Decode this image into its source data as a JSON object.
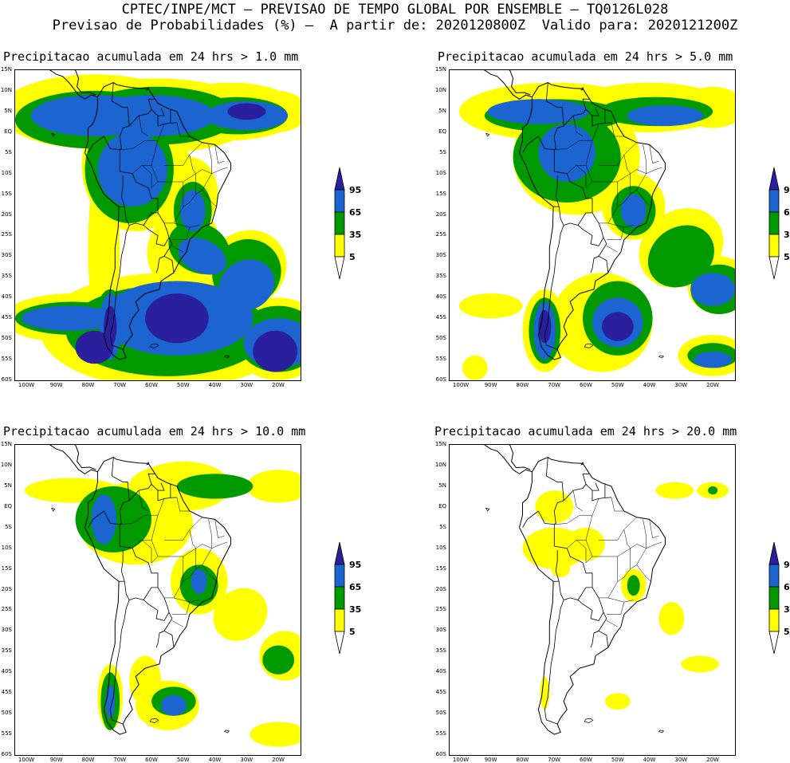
{
  "header": {
    "line1": "CPTEC/INPE/MCT — PREVISAO DE TEMPO GLOBAL POR ENSEMBLE — TQ0126L028",
    "line2": "Previsao de Probabilidades (%) —  A partir de: 2020120800Z  Valido para: 2020121200Z"
  },
  "axes": {
    "lat_labels": [
      "15N",
      "10N",
      "5N",
      "EQ",
      "5S",
      "10S",
      "15S",
      "20S",
      "25S",
      "30S",
      "35S",
      "40S",
      "45S",
      "50S",
      "55S",
      "60S"
    ],
    "lon_labels": [
      "100W",
      "90W",
      "80W",
      "70W",
      "60W",
      "50W",
      "40W",
      "30W",
      "20W"
    ]
  },
  "colors": {
    "yellow": "#ffff00",
    "green": "#009900",
    "blue": "#1c64d0",
    "navy": "#2a1f9c",
    "coast": "#000000"
  },
  "legend": {
    "labels": [
      "95",
      "65",
      "35",
      "5"
    ]
  },
  "panels": [
    {
      "title": "Precipitacao acumulada em 24 hrs > 1.0 mm"
    },
    {
      "title": "Precipitacao acumulada em 24 hrs > 5.0 mm"
    },
    {
      "title": "Precipitacao acumulada em 24 hrs > 10.0 mm"
    },
    {
      "title": "Precipitacao acumulada em 24 hrs > 20.0 mm"
    }
  ]
}
